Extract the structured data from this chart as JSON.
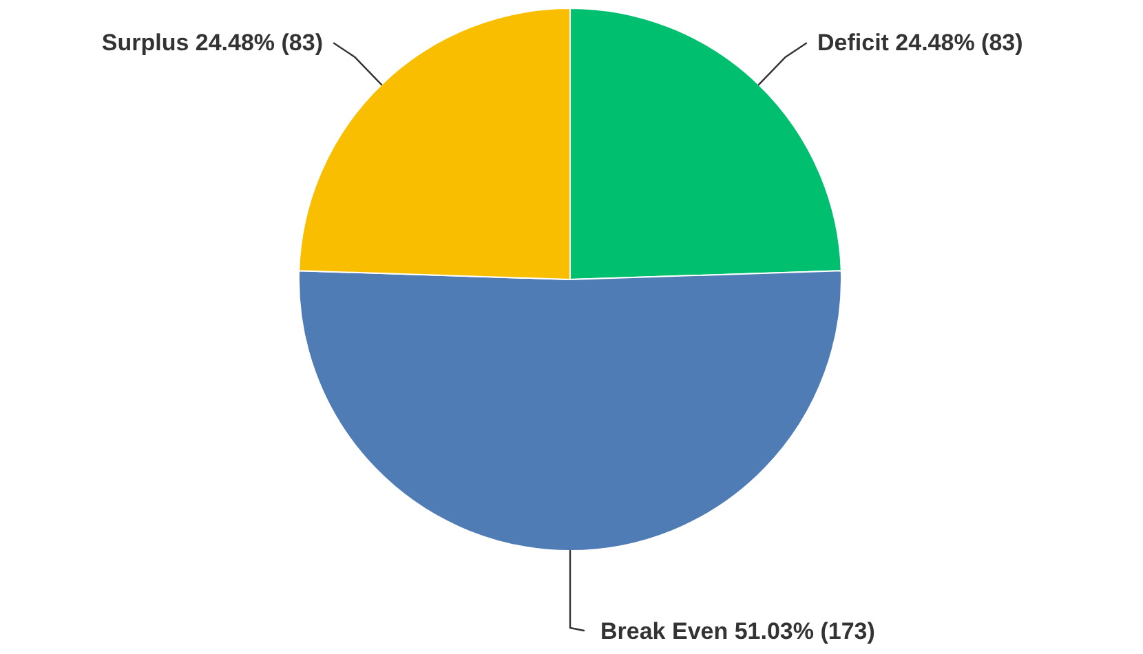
{
  "chart_data": {
    "type": "pie",
    "categories": [
      "Deficit",
      "Break Even",
      "Surplus"
    ],
    "values": [
      83,
      173,
      83
    ],
    "value_labels": [
      "24.48% (83)",
      "51.03% (173)",
      "24.48% (83)"
    ],
    "colors": [
      "#00bf6f",
      "#507cb6",
      "#f9be00"
    ]
  }
}
